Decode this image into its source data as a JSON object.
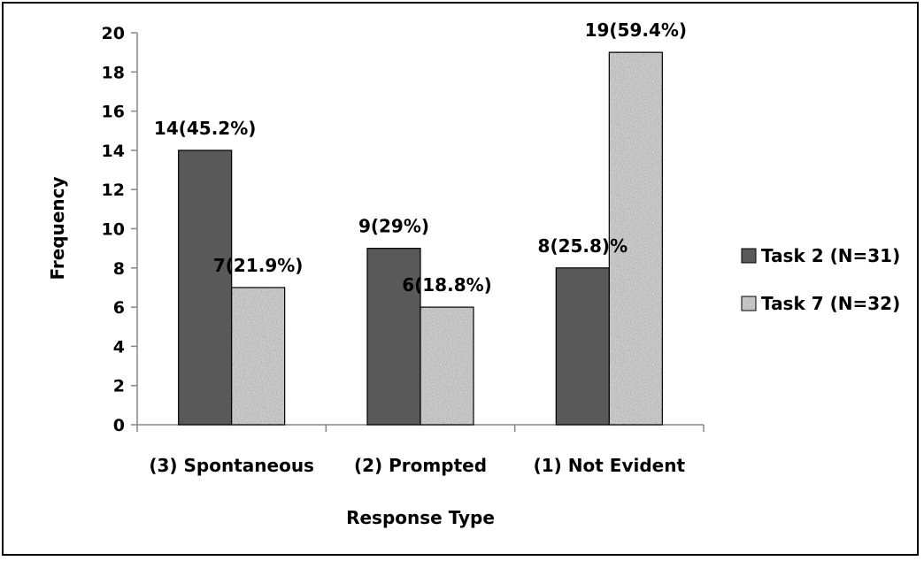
{
  "chart_data": {
    "type": "bar",
    "title": "",
    "xlabel": "Response Type",
    "ylabel": "Frequency",
    "categories": [
      "(3) Spontaneous",
      "(2) Prompted",
      "(1) Not Evident"
    ],
    "ylim": [
      0,
      20
    ],
    "yticks": [
      0,
      2,
      4,
      6,
      8,
      10,
      12,
      14,
      16,
      18,
      20
    ],
    "grid": false,
    "legend_position": "right",
    "series": [
      {
        "name": "Task 2 (N=31)",
        "color": "#595959",
        "pattern": "solid",
        "values": [
          14,
          9,
          8
        ],
        "data_labels": [
          "14(45.2%)",
          "9(29%)",
          "8(25.8)%"
        ]
      },
      {
        "name": "Task 7 (N=32)",
        "color": "#bfbfbf",
        "pattern": "speckled-granite",
        "values": [
          7,
          6,
          19
        ],
        "data_labels": [
          "7(21.9%)",
          "6(18.8%)",
          "19(59.4%)"
        ]
      }
    ]
  }
}
